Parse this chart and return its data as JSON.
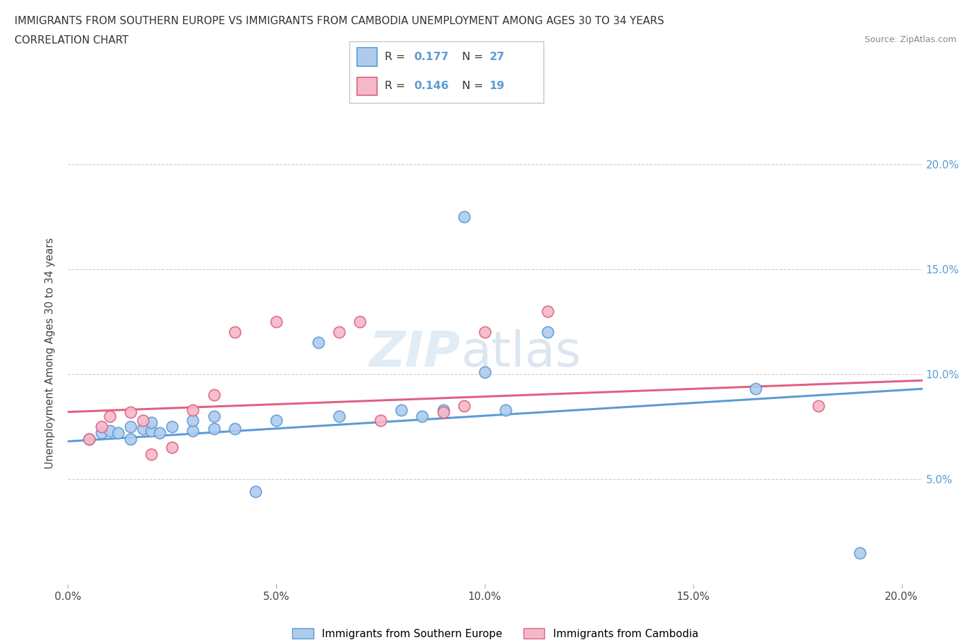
{
  "title_line1": "IMMIGRANTS FROM SOUTHERN EUROPE VS IMMIGRANTS FROM CAMBODIA UNEMPLOYMENT AMONG AGES 30 TO 34 YEARS",
  "title_line2": "CORRELATION CHART",
  "source_text": "Source: ZipAtlas.com",
  "ylabel": "Unemployment Among Ages 30 to 34 years",
  "xlim": [
    0.0,
    0.205
  ],
  "ylim": [
    0.0,
    0.22
  ],
  "xtick_positions": [
    0.0,
    0.05,
    0.1,
    0.15,
    0.2
  ],
  "xtick_labels": [
    "0.0%",
    "5.0%",
    "10.0%",
    "15.0%",
    "20.0%"
  ],
  "ytick_positions": [
    0.05,
    0.1,
    0.15,
    0.2
  ],
  "ytick_labels": [
    "5.0%",
    "10.0%",
    "15.0%",
    "20.0%"
  ],
  "blue_color": "#aecbee",
  "blue_edge_color": "#5b9bd5",
  "pink_color": "#f4b8c8",
  "pink_edge_color": "#e06080",
  "blue_line_color": "#5b9bd5",
  "pink_line_color": "#e06080",
  "legend_R1": "R = ",
  "legend_V1": "0.177",
  "legend_N1_label": "N = ",
  "legend_N1": "27",
  "legend_R2": "R = ",
  "legend_V2": "0.146",
  "legend_N2_label": "N = ",
  "legend_N2": "19",
  "watermark_part1": "ZIP",
  "watermark_part2": "atlas",
  "blue_scatter_x": [
    0.005,
    0.008,
    0.01,
    0.012,
    0.015,
    0.015,
    0.018,
    0.02,
    0.02,
    0.022,
    0.025,
    0.03,
    0.03,
    0.035,
    0.035,
    0.04,
    0.045,
    0.05,
    0.06,
    0.065,
    0.08,
    0.085,
    0.09,
    0.1,
    0.105,
    0.115,
    0.165
  ],
  "blue_scatter_y": [
    0.069,
    0.072,
    0.073,
    0.072,
    0.069,
    0.075,
    0.074,
    0.073,
    0.077,
    0.072,
    0.075,
    0.073,
    0.078,
    0.074,
    0.08,
    0.074,
    0.044,
    0.078,
    0.115,
    0.08,
    0.083,
    0.08,
    0.083,
    0.101,
    0.083,
    0.12,
    0.093
  ],
  "blue_special_x": [
    0.095
  ],
  "blue_special_y": [
    0.175
  ],
  "blue_bottom_x": [
    0.19
  ],
  "blue_bottom_y": [
    0.015
  ],
  "pink_scatter_x": [
    0.005,
    0.008,
    0.01,
    0.015,
    0.018,
    0.02,
    0.025,
    0.03,
    0.035,
    0.04,
    0.05,
    0.065,
    0.07,
    0.075,
    0.09,
    0.095,
    0.1,
    0.115,
    0.18
  ],
  "pink_scatter_y": [
    0.069,
    0.075,
    0.08,
    0.082,
    0.078,
    0.062,
    0.065,
    0.083,
    0.09,
    0.12,
    0.125,
    0.12,
    0.125,
    0.078,
    0.082,
    0.085,
    0.12,
    0.13,
    0.085
  ],
  "blue_trend_x": [
    0.0,
    0.205
  ],
  "blue_trend_y": [
    0.068,
    0.093
  ],
  "pink_trend_x": [
    0.0,
    0.205
  ],
  "pink_trend_y": [
    0.082,
    0.097
  ]
}
